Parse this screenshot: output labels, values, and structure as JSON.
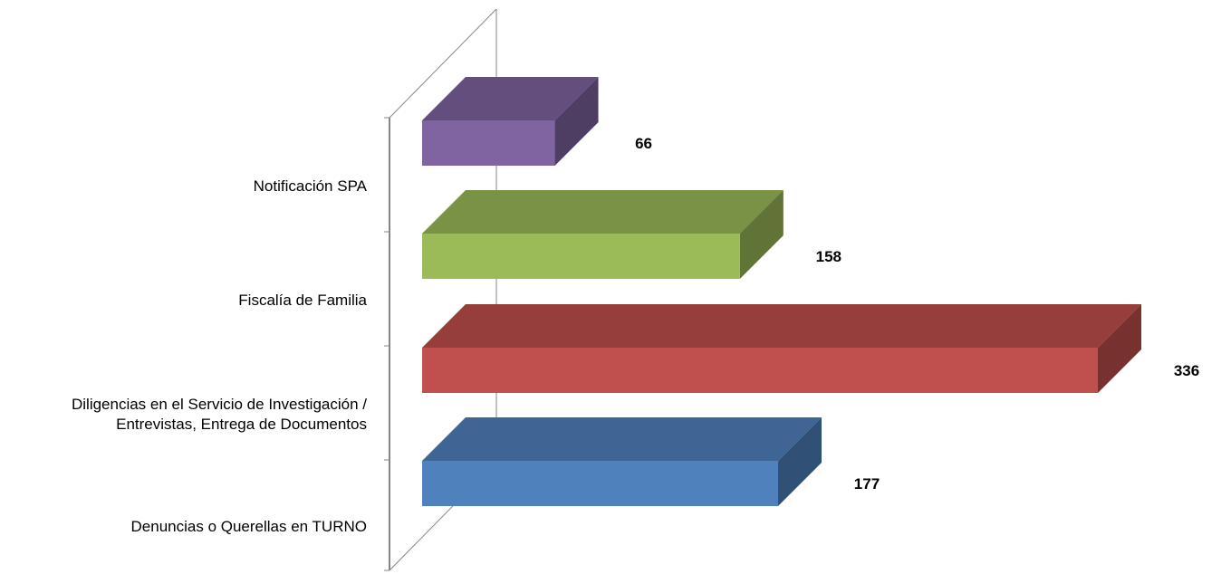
{
  "chart_data": {
    "type": "bar",
    "orientation": "horizontal",
    "style": "3d",
    "categories": [
      "Notificación SPA",
      "Fiscalía de Familia",
      "Diligencias en el Servicio de Investigación / Entrevistas, Entrega de Documentos",
      "Denuncias o Querellas en TURNO"
    ],
    "category_label_lines": [
      [
        "Notificación SPA"
      ],
      [
        "Fiscalía de Familia"
      ],
      [
        "Diligencias en el Servicio de Investigación /",
        "Entrevistas, Entrega de Documentos"
      ],
      [
        "Denuncias o Querellas en TURNO"
      ]
    ],
    "values": [
      66,
      158,
      336,
      177
    ],
    "value_labels": [
      "66",
      "158",
      "336",
      "177"
    ],
    "colors": [
      "#8064A2",
      "#9BBB59",
      "#C0504D",
      "#4F81BD"
    ],
    "xlim": [
      0,
      336
    ],
    "grid": false,
    "legend": "none"
  }
}
